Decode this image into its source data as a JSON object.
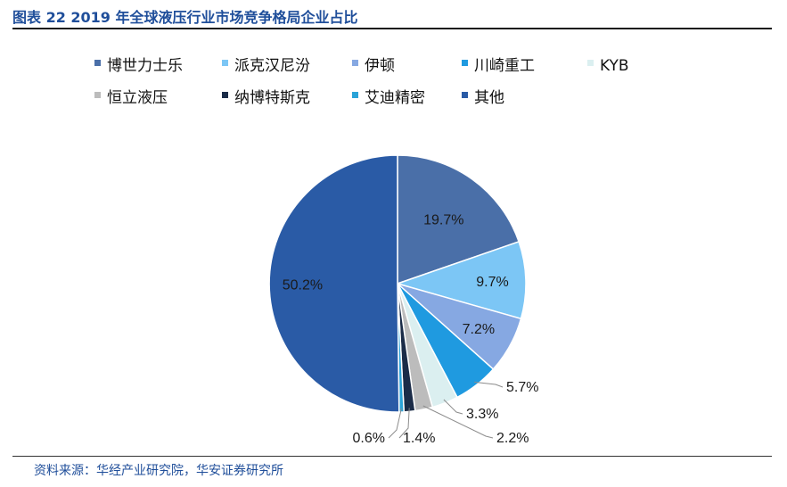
{
  "title": "图表 22 2019 年全球液压行业市场竞争格局企业占比",
  "source": "资料来源：华经产业研究院，华安证券研究所",
  "chart_data": {
    "type": "pie",
    "title": "",
    "start": "12 o'clock",
    "direction": "clockwise",
    "legend_placement": "top",
    "series": [
      {
        "name": "博世力士乐",
        "value": 19.7,
        "label": "19.7%",
        "color": "#4a6fa8"
      },
      {
        "name": "派克汉尼汾",
        "value": 9.7,
        "label": "9.7%",
        "color": "#7cc6f5"
      },
      {
        "name": "伊顿",
        "value": 7.2,
        "label": "7.2%",
        "color": "#86a8e2"
      },
      {
        "name": "川崎重工",
        "value": 5.7,
        "label": "5.7%",
        "color": "#1f9ae0"
      },
      {
        "name": "KYB",
        "value": 3.3,
        "label": "3.3%",
        "color": "#dbeff0"
      },
      {
        "name": "恒立液压",
        "value": 2.2,
        "label": "2.2%",
        "color": "#bcbcbc"
      },
      {
        "name": "纳博特斯克",
        "value": 1.4,
        "label": "1.4%",
        "color": "#1b2c48"
      },
      {
        "name": "艾迪精密",
        "value": 0.6,
        "label": "0.6%",
        "color": "#2aa3d8"
      },
      {
        "name": "其他",
        "value": 50.2,
        "label": "50.2%",
        "color": "#2a5ba6"
      }
    ]
  }
}
